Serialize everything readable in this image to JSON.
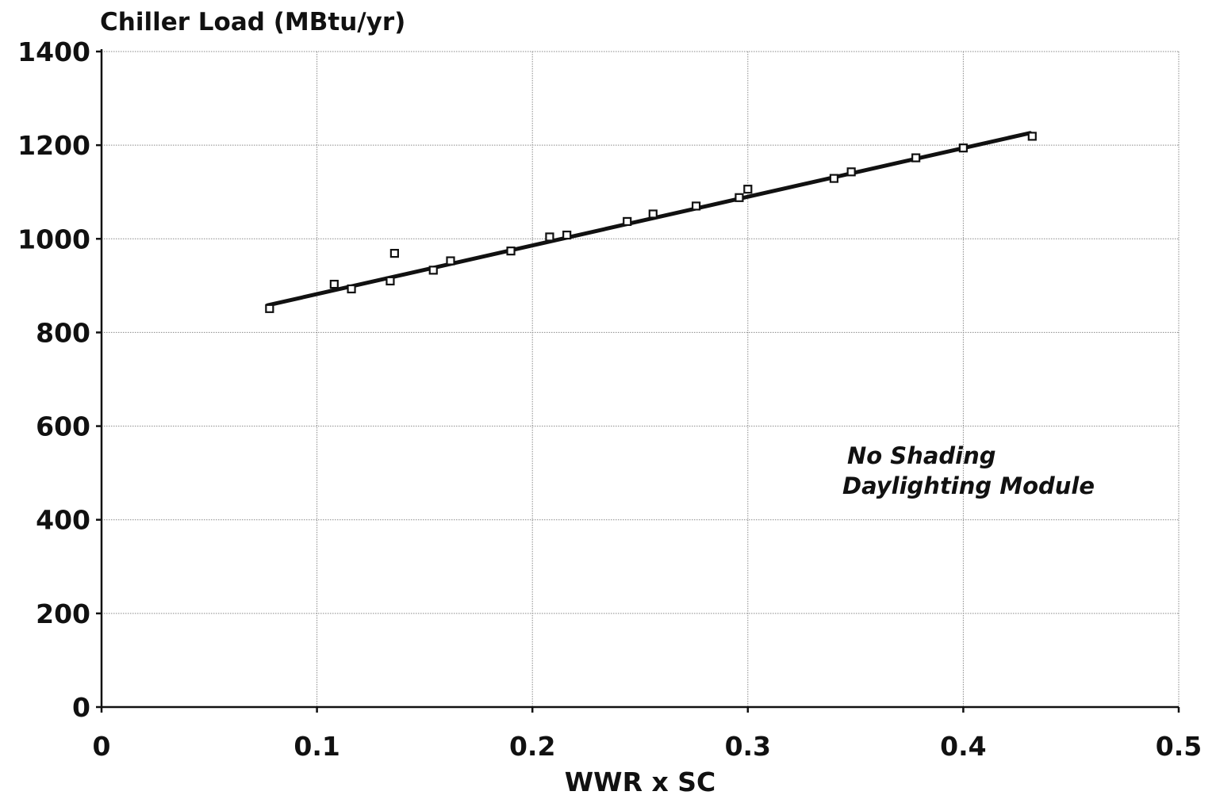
{
  "chart_data": {
    "type": "scatter",
    "title": "",
    "ylabel": "Chiller Load (MBtu/yr)",
    "xlabel": "WWR x SC",
    "xlim": [
      0,
      0.5
    ],
    "ylim": [
      0,
      1400
    ],
    "xticks": [
      0,
      0.1,
      0.2,
      0.3,
      0.4,
      0.5
    ],
    "xtick_labels": [
      "0",
      "0.1",
      "0.2",
      "0.3",
      "0.4",
      "0.5"
    ],
    "yticks": [
      0,
      200,
      400,
      600,
      800,
      1000,
      1200,
      1400
    ],
    "ytick_labels": [
      "0",
      "200",
      "400",
      "600",
      "800",
      "1000",
      "1200",
      "1400"
    ],
    "grid": true,
    "annotation": [
      "No Shading",
      "Daylighting Module"
    ],
    "series": [
      {
        "type": "scatter",
        "marker": "square",
        "x": [
          0.078,
          0.108,
          0.116,
          0.134,
          0.136,
          0.154,
          0.162,
          0.19,
          0.208,
          0.216,
          0.244,
          0.256,
          0.276,
          0.296,
          0.3,
          0.34,
          0.348,
          0.378,
          0.4,
          0.432
        ],
        "y": [
          851,
          903,
          893,
          910,
          969,
          933,
          953,
          974,
          1004,
          1008,
          1037,
          1053,
          1070,
          1088,
          1106,
          1129,
          1143,
          1173,
          1194,
          1219
        ]
      },
      {
        "type": "line",
        "x": [
          0.077,
          0.431
        ],
        "y": [
          858,
          1226
        ]
      }
    ]
  }
}
